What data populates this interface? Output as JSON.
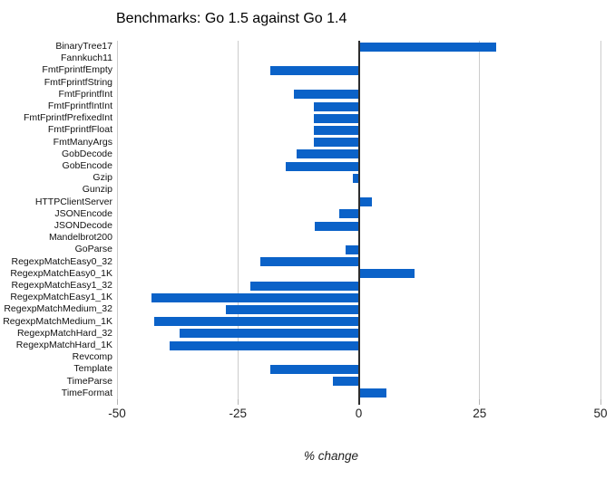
{
  "chart_data": {
    "type": "bar",
    "orientation": "horizontal",
    "title": "Benchmarks: Go 1.5 against Go 1.4",
    "xlabel": "% change",
    "xlim": [
      -50,
      50
    ],
    "xticks": [
      -50,
      -25,
      0,
      25,
      50
    ],
    "grid": "vertical gridlines at ticks (light gray), dark vertical line at zero",
    "legend": "none",
    "bar_color": "#0b62c8",
    "categories": [
      "BinaryTree17",
      "Fannkuch11",
      "FmtFprintfEmpty",
      "FmtFprintfString",
      "FmtFprintfInt",
      "FmtFprintfIntInt",
      "FmtFprintfPrefixedInt",
      "FmtFprintfFloat",
      "FmtManyArgs",
      "GobDecode",
      "GobEncode",
      "Gzip",
      "Gunzip",
      "HTTPClientServer",
      "JSONEncode",
      "JSONDecode",
      "Mandelbrot200",
      "GoParse",
      "RegexpMatchEasy0_32",
      "RegexpMatchEasy0_1K",
      "RegexpMatchEasy1_32",
      "RegexpMatchEasy1_1K",
      "RegexpMatchMedium_32",
      "RegexpMatchMedium_1K",
      "RegexpMatchHard_32",
      "RegexpMatchHard_1K",
      "Revcomp",
      "Template",
      "TimeParse",
      "TimeFormat"
    ],
    "values": [
      28.4,
      0,
      -18.2,
      0,
      -13.5,
      -9.2,
      -9.2,
      -9.2,
      -9.2,
      -12.8,
      -15.1,
      -1.3,
      0,
      2.8,
      -4.1,
      -9.1,
      0,
      -2.7,
      -20.4,
      11.6,
      -22.4,
      -42.9,
      -27.4,
      -42.4,
      -37.0,
      -39.2,
      0,
      -18.3,
      -5.3,
      5.7
    ]
  },
  "colors": {
    "bar": "#0b62c8",
    "gridline": "#cccccc",
    "zero_line": "#2d2d2d",
    "text": "#000000",
    "background": "#ffffff"
  }
}
